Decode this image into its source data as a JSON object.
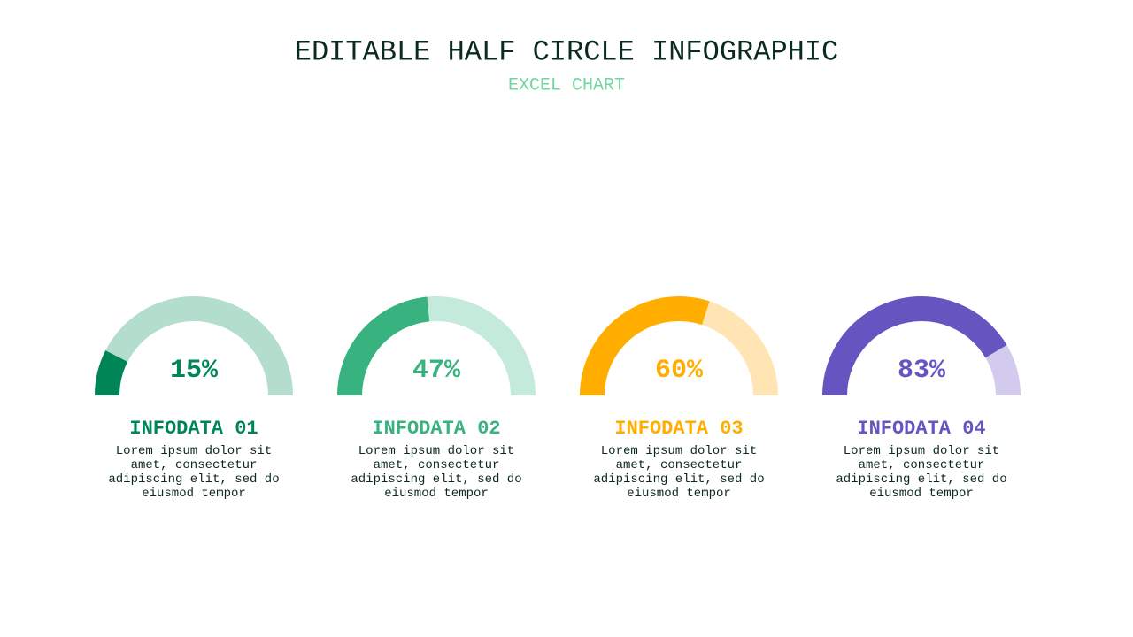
{
  "title": "EDITABLE HALF CIRCLE INFOGRAPHIC",
  "subtitle": "EXCEL CHART",
  "chart_data": [
    {
      "type": "gauge",
      "title": "INFODATA 01",
      "values": [
        15
      ],
      "value_labels": [
        "15%"
      ],
      "description": "Lorem ipsum dolor sit amet, consectetur adipiscing elit, sed do eiusmod tempor",
      "color": "#008656",
      "track_color": "#b3ddcc"
    },
    {
      "type": "gauge",
      "title": "INFODATA 02",
      "values": [
        47
      ],
      "value_labels": [
        "47%"
      ],
      "description": "Lorem ipsum dolor sit amet, consectetur adipiscing elit, sed do eiusmod tempor",
      "color": "#38b27e",
      "track_color": "#c3eadb"
    },
    {
      "type": "gauge",
      "title": "INFODATA 03",
      "values": [
        60
      ],
      "value_labels": [
        "60%"
      ],
      "description": "Lorem ipsum dolor sit amet, consectetur adipiscing elit, sed do eiusmod tempor",
      "color": "#ffae00",
      "track_color": "#ffe5b3"
    },
    {
      "type": "gauge",
      "title": "INFODATA 04",
      "values": [
        83
      ],
      "value_labels": [
        "83%"
      ],
      "description": "Lorem ipsum dolor sit amet, consectetur adipiscing elit, sed do eiusmod tempor",
      "color": "#6655c0",
      "track_color": "#d2cbee"
    }
  ]
}
